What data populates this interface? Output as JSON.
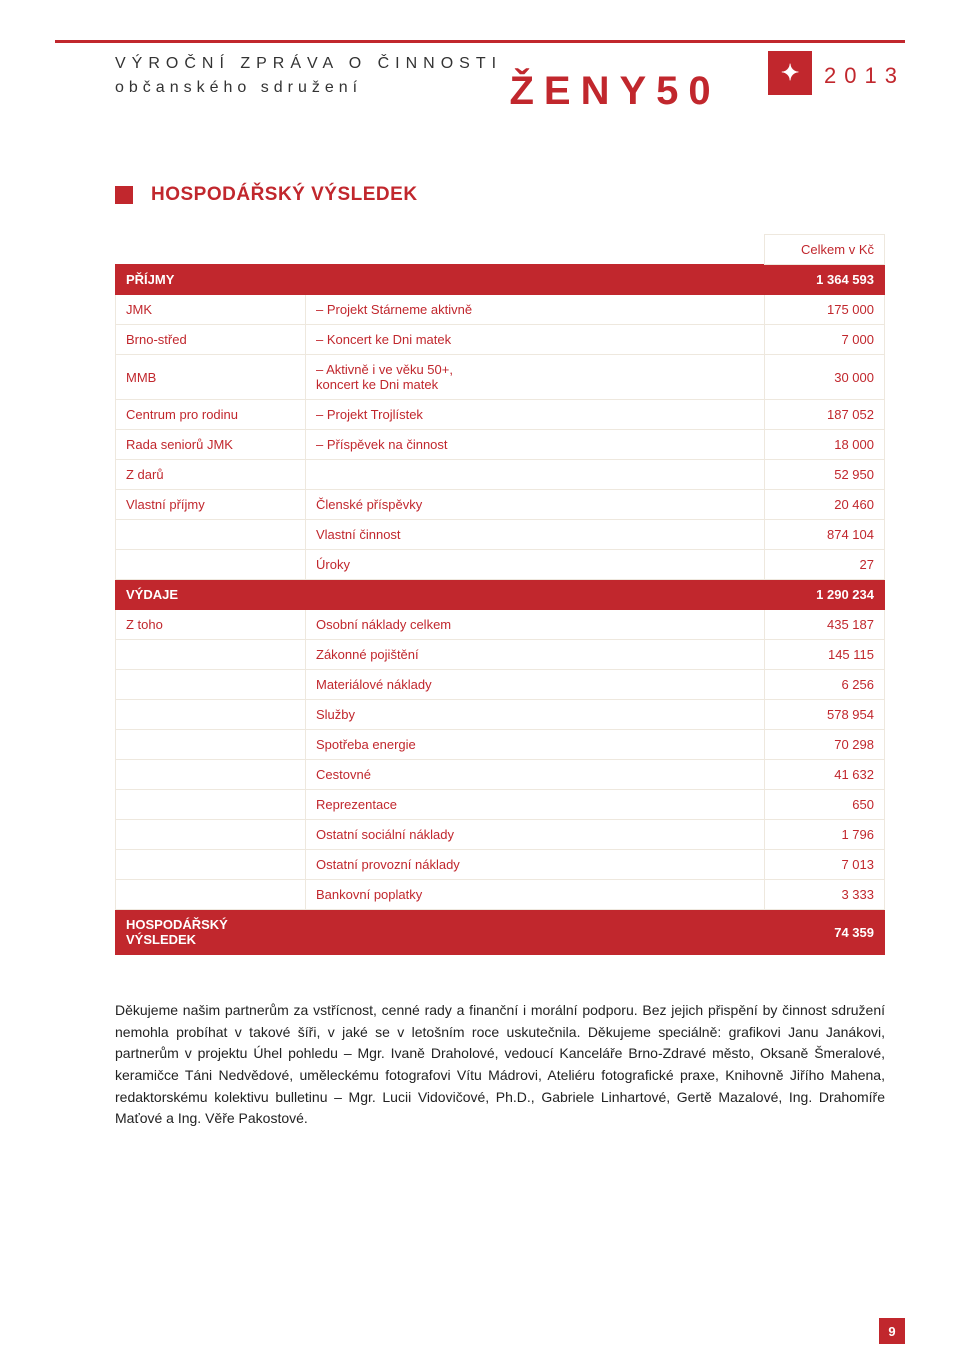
{
  "header": {
    "line1": "VÝROČNÍ ZPRÁVA O ČINNOSTI",
    "line2": "občanského sdružení",
    "brand": "ŽENY50",
    "year": "2013",
    "logo_glyph": "✦"
  },
  "section_title": "HOSPODÁŘSKÝ VÝSLEDEK",
  "table": {
    "currency_header": "Celkem v Kč",
    "rows": [
      {
        "type": "top",
        "c1": "",
        "c2": "",
        "c3": "Celkem v Kč"
      },
      {
        "type": "header",
        "c1": "PŘÍJMY",
        "c2": "",
        "c3": "1 364 593"
      },
      {
        "type": "normal",
        "c1": "JMK",
        "c2": "– Projekt Stárneme aktivně",
        "c3": "175 000"
      },
      {
        "type": "normal",
        "c1": "Brno-střed",
        "c2": "– Koncert ke Dni matek",
        "c3": "7 000"
      },
      {
        "type": "normal",
        "c1": "MMB",
        "c2": "– Aktivně i ve věku 50+,\n   koncert ke Dni matek",
        "c3": "30 000"
      },
      {
        "type": "normal",
        "c1": "Centrum pro rodinu",
        "c2": "– Projekt Trojlístek",
        "c3": "187 052"
      },
      {
        "type": "normal",
        "c1": "Rada seniorů JMK",
        "c2": "– Příspěvek na činnost",
        "c3": "18 000"
      },
      {
        "type": "normal",
        "c1": "Z darů",
        "c2": "",
        "c3": "52 950"
      },
      {
        "type": "normal",
        "c1": "Vlastní příjmy",
        "c2": "Členské příspěvky",
        "c3": "20 460"
      },
      {
        "type": "normal",
        "c1": "",
        "c2": "Vlastní činnost",
        "c3": "874 104"
      },
      {
        "type": "normal",
        "c1": "",
        "c2": "Úroky",
        "c3": "27"
      },
      {
        "type": "header",
        "c1": "VÝDAJE",
        "c2": "",
        "c3": "1 290 234"
      },
      {
        "type": "normal",
        "c1": "Z toho",
        "c2": "Osobní náklady celkem",
        "c3": "435 187"
      },
      {
        "type": "normal",
        "c1": "",
        "c2": "Zákonné pojištění",
        "c3": "145 115"
      },
      {
        "type": "normal",
        "c1": "",
        "c2": "Materiálové náklady",
        "c3": "6 256"
      },
      {
        "type": "normal",
        "c1": "",
        "c2": "Služby",
        "c3": "578 954"
      },
      {
        "type": "normal",
        "c1": "",
        "c2": "Spotřeba energie",
        "c3": "70 298"
      },
      {
        "type": "normal",
        "c1": "",
        "c2": "Cestovné",
        "c3": "41 632"
      },
      {
        "type": "normal",
        "c1": "",
        "c2": "Reprezentace",
        "c3": "650"
      },
      {
        "type": "normal",
        "c1": "",
        "c2": "Ostatní sociální náklady",
        "c3": "1 796"
      },
      {
        "type": "normal",
        "c1": "",
        "c2": "Ostatní provozní náklady",
        "c3": "7 013"
      },
      {
        "type": "normal",
        "c1": "",
        "c2": "Bankovní poplatky",
        "c3": "3 333"
      },
      {
        "type": "header",
        "c1": "HOSPODÁŘSKÝ VÝSLEDEK",
        "c2": "",
        "c3": "74 359"
      }
    ],
    "col_widths": [
      "190px",
      "auto",
      "120px"
    ],
    "header_bg": "#c1272d",
    "header_fg": "#ffffff",
    "cell_border": "#eee8de",
    "cell_fg": "#c1272d"
  },
  "bodytext": "Děkujeme našim partnerům za vstřícnost, cenné rady a finanční i morální podporu. Bez jejich přispění by činnost sdružení nemohla probíhat v takové šíři, v jaké se v letošním roce uskutečnila. Děkujeme speciálně: grafikovi Janu Janákovi, partnerům v projektu Úhel pohledu – Mgr. Ivaně Draholové, vedoucí Kanceláře Brno-Zdravé město, Oksaně Šmeralové, keramičce Táni Nedvědové, uměleckému fotografovi Vítu Mádrovi, Ateliéru fotografické praxe, Knihovně Jiřího Mahena, redaktorskému kolektivu bulletinu – Mgr. Lucii Vidovičové, Ph.D., Gabriele Linhartové, Gertě Mazalové, Ing. Drahomíře Maťové a Ing. Věře Pakostové.",
  "page_number": "9",
  "colors": {
    "accent": "#c1272d",
    "text": "#222222",
    "bg": "#ffffff"
  }
}
